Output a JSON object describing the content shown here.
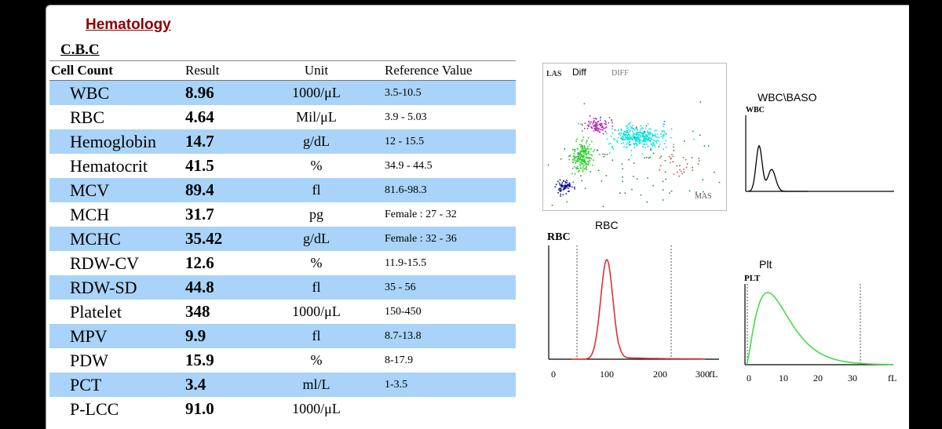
{
  "report": {
    "section_title": "Hematology",
    "subtitle": "C.B.C"
  },
  "table": {
    "headers": {
      "cell_count": "Cell Count",
      "result": "Result",
      "unit": "Unit",
      "reference": "Reference Value"
    },
    "rows": [
      {
        "name": "WBC",
        "result": "8.96",
        "unit": "1000/μL",
        "ref": "3.5-10.5"
      },
      {
        "name": "RBC",
        "result": "4.64",
        "unit": "Mil/μL",
        "ref": "3.9 - 5.03"
      },
      {
        "name": "Hemoglobin",
        "result": "14.7",
        "unit": "g/dL",
        "ref": "12 - 15.5"
      },
      {
        "name": "Hematocrit",
        "result": "41.5",
        "unit": "%",
        "ref": "34.9 - 44.5"
      },
      {
        "name": "MCV",
        "result": "89.4",
        "unit": "fl",
        "ref": "81.6-98.3"
      },
      {
        "name": "MCH",
        "result": "31.7",
        "unit": "pg",
        "ref": "Female : 27 - 32"
      },
      {
        "name": "MCHC",
        "result": "35.42",
        "unit": "g/dL",
        "ref": "Female : 32 - 36"
      },
      {
        "name": "RDW-CV",
        "result": "12.6",
        "unit": "%",
        "ref": "11.9-15.5"
      },
      {
        "name": "RDW-SD",
        "result": "44.8",
        "unit": "fl",
        "ref": "35 - 56"
      },
      {
        "name": "Platelet",
        "result": "348",
        "unit": "1000/μL",
        "ref": "150-450"
      },
      {
        "name": "MPV",
        "result": "9.9",
        "unit": "fl",
        "ref": "8.7-13.8"
      },
      {
        "name": "PDW",
        "result": "15.9",
        "unit": "%",
        "ref": "8-17.9"
      },
      {
        "name": "PCT",
        "result": "3.4",
        "unit": "ml/L",
        "ref": "1-3.5"
      },
      {
        "name": "P-LCC",
        "result": "91.0",
        "unit": "1000/μL",
        "ref": ""
      }
    ]
  },
  "plots": {
    "diff": {
      "title": "Diff",
      "y_label": "LAS",
      "sub_label": "DIFF",
      "x_label": "MAS"
    },
    "wbc": {
      "title": "WBC\\BASO",
      "sub_label": "WBC"
    },
    "rbc": {
      "title": "RBC",
      "sub_label": "RBC",
      "axis_unit": "fL",
      "ticks": [
        "0",
        "100",
        "200",
        "300"
      ],
      "color": "#e03030"
    },
    "plt": {
      "title": "Plt",
      "sub_label": "PLT",
      "axis_unit": "fL",
      "ticks": [
        "0",
        "10",
        "20",
        "30"
      ],
      "color": "#44dd44"
    }
  },
  "colors": {
    "section_title": "#8b0000",
    "row_highlight": "#a9d3f8"
  }
}
